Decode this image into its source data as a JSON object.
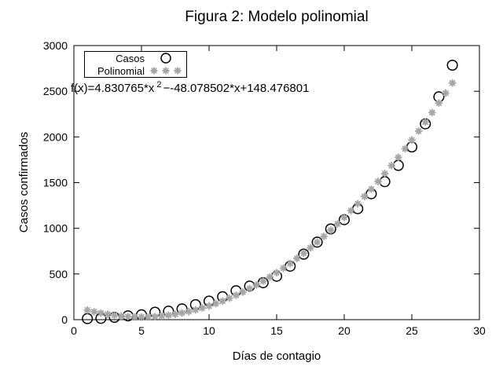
{
  "chart_data": {
    "type": "scatter",
    "title": "Figura 2: Modelo polinomial",
    "xlabel": "Días de contagio",
    "ylabel": "Casos confirmados",
    "xlim": [
      0,
      30
    ],
    "ylim": [
      0,
      3000
    ],
    "xticks": [
      0,
      5,
      10,
      15,
      20,
      25,
      30
    ],
    "yticks": [
      0,
      500,
      1000,
      1500,
      2000,
      2500,
      3000
    ],
    "grid": false,
    "legend_position": "top-left-inside",
    "annotation": {
      "prefix": "f(x)=4.830765*x",
      "superscript": "2",
      "suffix": "−-48.078502*x+148.476801"
    },
    "series": [
      {
        "name": "Casos",
        "marker": "circle",
        "color": "#000000",
        "x": [
          1,
          2,
          3,
          4,
          5,
          6,
          7,
          8,
          9,
          10,
          11,
          12,
          13,
          14,
          15,
          16,
          17,
          18,
          19,
          20,
          21,
          22,
          23,
          24,
          25,
          26,
          27,
          28
        ],
        "values": [
          11,
          15,
          26,
          41,
          53,
          82,
          93,
          118,
          164,
          203,
          251,
          316,
          367,
          405,
          475,
          585,
          717,
          848,
          993,
          1094,
          1215,
          1378,
          1510,
          1688,
          1890,
          2143,
          2439,
          2785
        ]
      },
      {
        "name": "Polinomial",
        "marker": "asterisk",
        "color": "#a6a6a6",
        "fit": {
          "a": 4.830765,
          "b": -48.078502,
          "c": 148.476801,
          "x_start": 1,
          "x_end": 28,
          "x_step": 0.5
        }
      }
    ]
  }
}
